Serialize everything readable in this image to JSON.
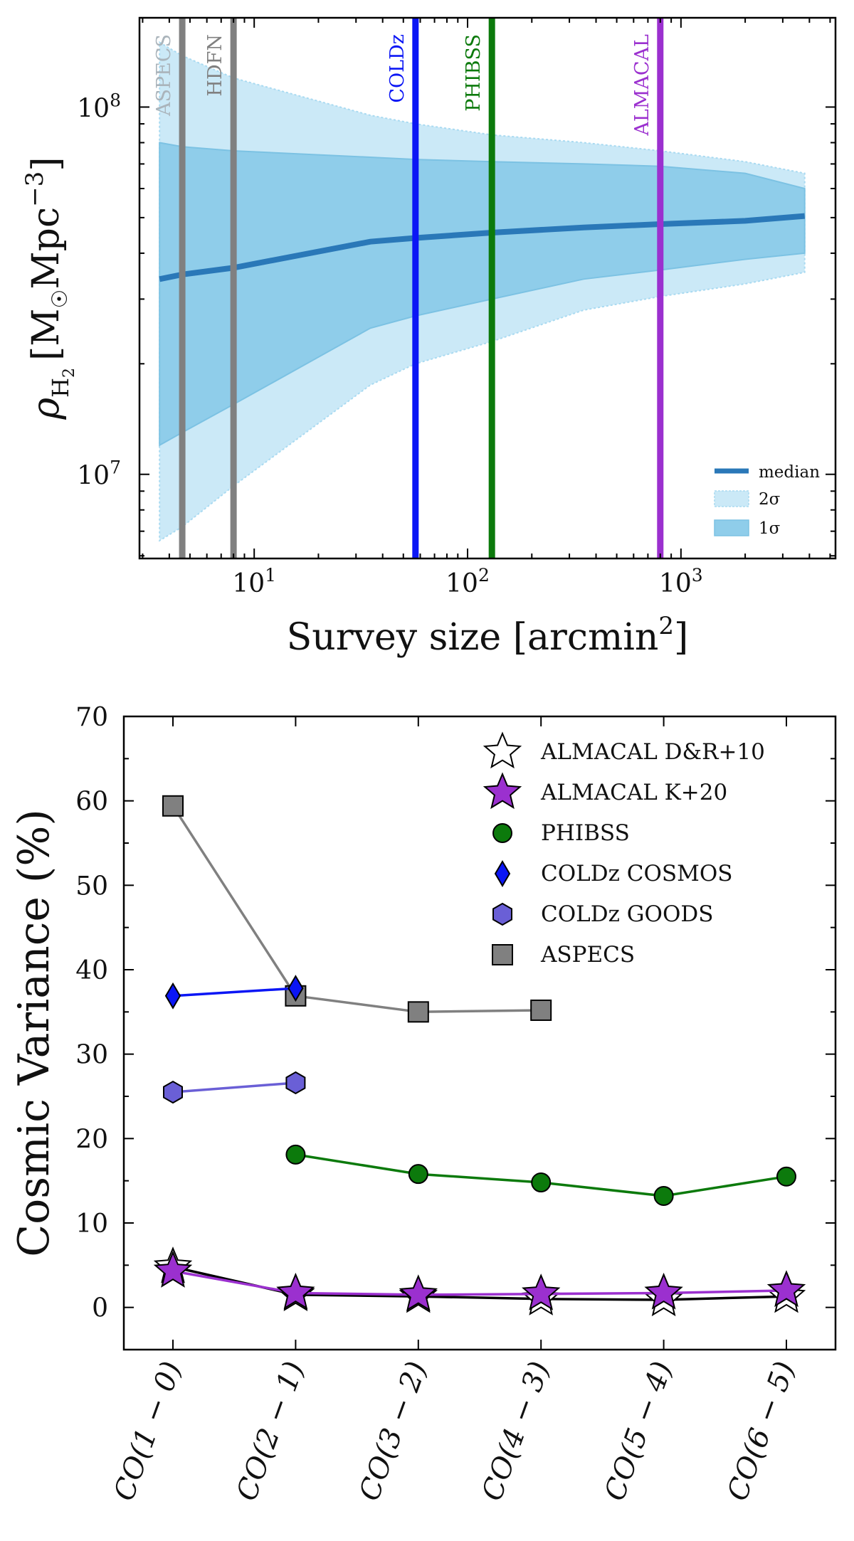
{
  "chart_data": [
    {
      "type": "line",
      "xscale": "log",
      "yscale": "log",
      "xlim": [
        2.9,
        5300
      ],
      "ylim": [
        5900000,
        175000000
      ],
      "xlabel": "Survey size [arcmin",
      "xlabel_sup": "2",
      "xlabel_end": "]",
      "ylabel_rho": "ρ",
      "ylabel_sub": "H",
      "ylabel_subsub": "2",
      "ylabel_units": "[M",
      "ylabel_sun": "☉",
      "ylabel_mpc": "Mpc",
      "ylabel_exp": "−3",
      "ylabel_end": "]",
      "xticks": [
        {
          "value": 10,
          "base": "10",
          "exp": "1"
        },
        {
          "value": 100,
          "base": "10",
          "exp": "2"
        },
        {
          "value": 1000,
          "base": "10",
          "exp": "3"
        }
      ],
      "yticks": [
        {
          "value": 10000000,
          "base": "10",
          "exp": "7"
        },
        {
          "value": 100000000,
          "base": "10",
          "exp": "8"
        }
      ],
      "median": {
        "name": "median",
        "color": "#2a78b8",
        "x": [
          3.6,
          4.6,
          8,
          35,
          57,
          130,
          350,
          800,
          2000,
          3800
        ],
        "y": [
          34000000,
          35000000,
          36500000,
          43000000,
          44000000,
          45500000,
          47000000,
          48000000,
          49000000,
          50500000
        ]
      },
      "band_1sigma": {
        "name": "1σ",
        "color": "#8fcdea",
        "x": [
          3.6,
          4.6,
          8,
          35,
          57,
          130,
          350,
          800,
          2000,
          3800
        ],
        "upper": [
          80000000,
          78000000,
          76000000,
          73000000,
          72000000,
          71000000,
          70000000,
          69000000,
          66000000,
          60000000
        ],
        "lower": [
          12000000,
          13000000,
          15500000,
          25000000,
          27000000,
          30000000,
          34000000,
          36000000,
          38500000,
          40000000
        ]
      },
      "band_2sigma": {
        "name": "2σ",
        "color": "#cbe9f7",
        "x": [
          3.6,
          4.6,
          8,
          35,
          57,
          130,
          350,
          800,
          2000,
          3800
        ],
        "upper": [
          150000000,
          138000000,
          120000000,
          95000000,
          90000000,
          84000000,
          80000000,
          76000000,
          71000000,
          66000000
        ],
        "lower": [
          6600000,
          7200000,
          9300000,
          17500000,
          20000000,
          23000000,
          28000000,
          30500000,
          33000000,
          35500000
        ]
      },
      "surveys": [
        {
          "name": "ASPECS",
          "x": 4.6,
          "color": "#808080",
          "label_color": "#aab4bb"
        },
        {
          "name": "HDFN",
          "x": 8.0,
          "color": "#808080",
          "label_color": "#808080"
        },
        {
          "name": "COLDz",
          "x": 57,
          "color": "#0b16f5",
          "label_color": "#0b16f5"
        },
        {
          "name": "PHIBSS",
          "x": 130,
          "color": "#0c7a0c",
          "label_color": "#0c7a0c"
        },
        {
          "name": "ALMACAL",
          "x": 800,
          "color": "#9b30cf",
          "label_color": "#9b30cf"
        }
      ],
      "legend": {
        "position": "bottom-right",
        "entries": [
          {
            "label": "median",
            "kind": "line",
            "color": "#2a78b8"
          },
          {
            "label": "2σ",
            "kind": "patch",
            "color": "#cbe9f7"
          },
          {
            "label": "1σ",
            "kind": "patch",
            "color": "#8fcdea"
          }
        ]
      }
    },
    {
      "type": "line",
      "categories": [
        "CO(1 − 0)",
        "CO(2 − 1)",
        "CO(3 − 2)",
        "CO(4 − 3)",
        "CO(5 − 4)",
        "CO(6 − 5)"
      ],
      "ylabel": "Cosmic Variance (%)",
      "ylim": [
        -5,
        70
      ],
      "yticks": [
        0,
        10,
        20,
        30,
        40,
        50,
        60,
        70
      ],
      "series": [
        {
          "name": "ALMACAL D&R+10",
          "marker": "star",
          "fill": "#ffffff",
          "line": "#000000",
          "values": [
            4.8,
            1.5,
            1.3,
            1.0,
            0.9,
            1.3
          ]
        },
        {
          "name": "ALMACAL K+20",
          "marker": "star",
          "fill": "#9b30cf",
          "line": "#9b30cf",
          "values": [
            4.3,
            1.7,
            1.5,
            1.6,
            1.7,
            2.0
          ]
        },
        {
          "name": "PHIBSS",
          "marker": "circle",
          "fill": "#0c7a0c",
          "line": "#0c7a0c",
          "values": [
            null,
            18.1,
            15.8,
            14.8,
            13.2,
            15.5
          ]
        },
        {
          "name": "COLDz COSMOS",
          "marker": "diamond",
          "fill": "#0b16f5",
          "line": "#0b16f5",
          "values": [
            36.9,
            37.8,
            null,
            null,
            null,
            null
          ]
        },
        {
          "name": "COLDz GOODS",
          "marker": "hexagon",
          "fill": "#6a5fd6",
          "line": "#6a5fd6",
          "values": [
            25.5,
            26.6,
            null,
            null,
            null,
            null
          ]
        },
        {
          "name": "ASPECS",
          "marker": "square",
          "fill": "#808080",
          "line": "#808080",
          "values": [
            59.4,
            36.9,
            35.0,
            35.2,
            null,
            null
          ]
        }
      ],
      "legend": {
        "position": "top-right"
      }
    }
  ]
}
